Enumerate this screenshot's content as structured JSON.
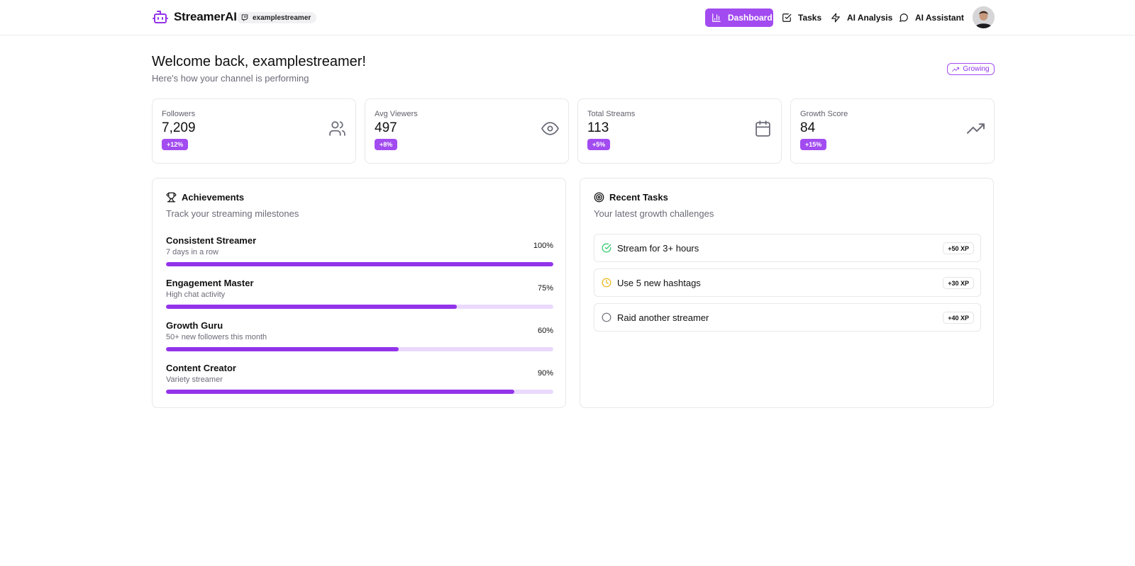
{
  "app": {
    "name": "StreamerAI",
    "logo_icon": "bot-icon",
    "channel": "examplestreamer",
    "channel_icon": "twitch-icon"
  },
  "nav": {
    "items": [
      {
        "label": "Dashboard",
        "icon": "bar-chart-icon",
        "active": true
      },
      {
        "label": "Tasks",
        "icon": "check-square-icon",
        "active": false
      },
      {
        "label": "AI Analysis",
        "icon": "zap-icon",
        "active": false
      },
      {
        "label": "AI Assistant",
        "icon": "message-circle-icon",
        "active": false
      }
    ],
    "avatar_icon": "user-avatar"
  },
  "welcome": {
    "title": "Welcome back, examplestreamer!",
    "subtitle": "Here's how your channel is performing",
    "badge": "Growing",
    "badge_icon": "trending-up-icon"
  },
  "stats": [
    {
      "label": "Followers",
      "value": "7,209",
      "delta": "+12%",
      "icon": "users-icon"
    },
    {
      "label": "Avg Viewers",
      "value": "497",
      "delta": "+8%",
      "icon": "eye-icon"
    },
    {
      "label": "Total Streams",
      "value": "113",
      "delta": "+5%",
      "icon": "calendar-icon"
    },
    {
      "label": "Growth Score",
      "value": "84",
      "delta": "+15%",
      "icon": "trending-up-icon"
    }
  ],
  "achievements": {
    "title": "Achievements",
    "icon": "trophy-icon",
    "subtitle": "Track your streaming milestones",
    "items": [
      {
        "name": "Consistent Streamer",
        "desc": "7 days in a row",
        "pct_label": "100%",
        "progress": 100
      },
      {
        "name": "Engagement Master",
        "desc": "High chat activity",
        "pct_label": "75%",
        "progress": 75
      },
      {
        "name": "Growth Guru",
        "desc": "50+ new followers this month",
        "pct_label": "60%",
        "progress": 60
      },
      {
        "name": "Content Creator",
        "desc": "Variety streamer",
        "pct_label": "90%",
        "progress": 90
      }
    ]
  },
  "tasks": {
    "title": "Recent Tasks",
    "icon": "target-icon",
    "subtitle": "Your latest growth challenges",
    "items": [
      {
        "label": "Stream for 3+ hours",
        "xp": "+50 XP",
        "status": "completed",
        "icon": "check-circle-icon",
        "color": "#22c55e"
      },
      {
        "label": "Use 5 new hashtags",
        "xp": "+30 XP",
        "status": "in-progress",
        "icon": "clock-icon",
        "color": "#eab308"
      },
      {
        "label": "Raid another streamer",
        "xp": "+40 XP",
        "status": "pending",
        "icon": "circle-icon",
        "color": "#6b6b78"
      }
    ]
  },
  "colors": {
    "accent": "#9333ea",
    "accent_light": "#ead9fd",
    "nav_active": "#a24bf0"
  }
}
